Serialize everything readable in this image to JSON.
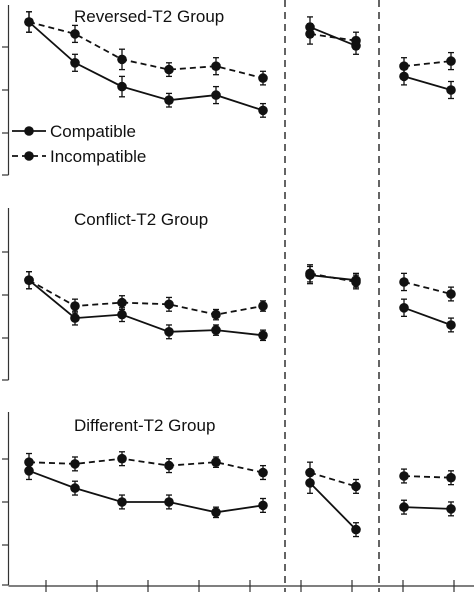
{
  "chart_data": [
    {
      "type": "line",
      "title": "Reversed-T2 Group",
      "segments": [
        {
          "x": [
            1,
            2,
            3,
            4,
            5,
            6
          ],
          "series": [
            {
              "name": "Compatible",
              "values": [
                0.9,
                0.66,
                0.52,
                0.44,
                0.47,
                0.38
              ],
              "errors": [
                0.06,
                0.05,
                0.06,
                0.04,
                0.05,
                0.04
              ]
            },
            {
              "name": "Incompatible",
              "values": [
                0.9,
                0.83,
                0.68,
                0.62,
                0.64,
                0.57
              ],
              "errors": [
                0.06,
                0.05,
                0.06,
                0.04,
                0.05,
                0.04
              ]
            }
          ]
        },
        {
          "x": [
            1,
            2
          ],
          "series": [
            {
              "name": "Compatible",
              "values": [
                0.87,
                0.76
              ],
              "errors": [
                0.06,
                0.05
              ]
            },
            {
              "name": "Incompatible",
              "values": [
                0.83,
                0.79
              ],
              "errors": [
                0.06,
                0.05
              ]
            }
          ]
        },
        {
          "x": [
            1,
            2
          ],
          "series": [
            {
              "name": "Compatible",
              "values": [
                0.58,
                0.5
              ],
              "errors": [
                0.05,
                0.05
              ]
            },
            {
              "name": "Incompatible",
              "values": [
                0.64,
                0.67
              ],
              "errors": [
                0.05,
                0.05
              ]
            }
          ]
        }
      ]
    },
    {
      "type": "line",
      "title": "Conflict-T2 Group",
      "segments": [
        {
          "x": [
            1,
            2,
            3,
            4,
            5,
            6
          ],
          "series": [
            {
              "name": "Compatible",
              "values": [
                0.58,
                0.36,
                0.38,
                0.28,
                0.29,
                0.26
              ],
              "errors": [
                0.05,
                0.04,
                0.04,
                0.04,
                0.03,
                0.03
              ]
            },
            {
              "name": "Incompatible",
              "values": [
                0.58,
                0.43,
                0.45,
                0.44,
                0.38,
                0.43
              ],
              "errors": [
                0.05,
                0.04,
                0.04,
                0.04,
                0.03,
                0.03
              ]
            }
          ]
        },
        {
          "x": [
            1,
            2
          ],
          "series": [
            {
              "name": "Compatible",
              "values": [
                0.61,
                0.58
              ],
              "errors": [
                0.05,
                0.04
              ]
            },
            {
              "name": "Incompatible",
              "values": [
                0.62,
                0.57
              ],
              "errors": [
                0.05,
                0.04
              ]
            }
          ]
        },
        {
          "x": [
            1,
            2
          ],
          "series": [
            {
              "name": "Compatible",
              "values": [
                0.42,
                0.32
              ],
              "errors": [
                0.05,
                0.04
              ]
            },
            {
              "name": "Incompatible",
              "values": [
                0.57,
                0.5
              ],
              "errors": [
                0.05,
                0.04
              ]
            }
          ]
        }
      ]
    },
    {
      "type": "line",
      "title": "Different-T2 Group",
      "segments": [
        {
          "x": [
            1,
            2,
            3,
            4,
            5,
            6
          ],
          "series": [
            {
              "name": "Compatible",
              "values": [
                0.66,
                0.56,
                0.48,
                0.48,
                0.42,
                0.46
              ],
              "errors": [
                0.05,
                0.04,
                0.04,
                0.04,
                0.03,
                0.04
              ]
            },
            {
              "name": "Incompatible",
              "values": [
                0.71,
                0.7,
                0.73,
                0.69,
                0.71,
                0.65
              ],
              "errors": [
                0.05,
                0.04,
                0.04,
                0.04,
                0.03,
                0.04
              ]
            }
          ]
        },
        {
          "x": [
            1,
            2
          ],
          "series": [
            {
              "name": "Compatible",
              "values": [
                0.59,
                0.32
              ],
              "errors": [
                0.06,
                0.04
              ]
            },
            {
              "name": "Incompatible",
              "values": [
                0.65,
                0.57
              ],
              "errors": [
                0.06,
                0.04
              ]
            }
          ]
        },
        {
          "x": [
            1,
            2
          ],
          "series": [
            {
              "name": "Compatible",
              "values": [
                0.45,
                0.44
              ],
              "errors": [
                0.04,
                0.04
              ]
            },
            {
              "name": "Incompatible",
              "values": [
                0.63,
                0.62
              ],
              "errors": [
                0.04,
                0.04
              ]
            }
          ]
        }
      ]
    }
  ],
  "legend": {
    "placement": "bottom-left of top panel",
    "entries": [
      "Compatible",
      "Incompatible"
    ]
  }
}
